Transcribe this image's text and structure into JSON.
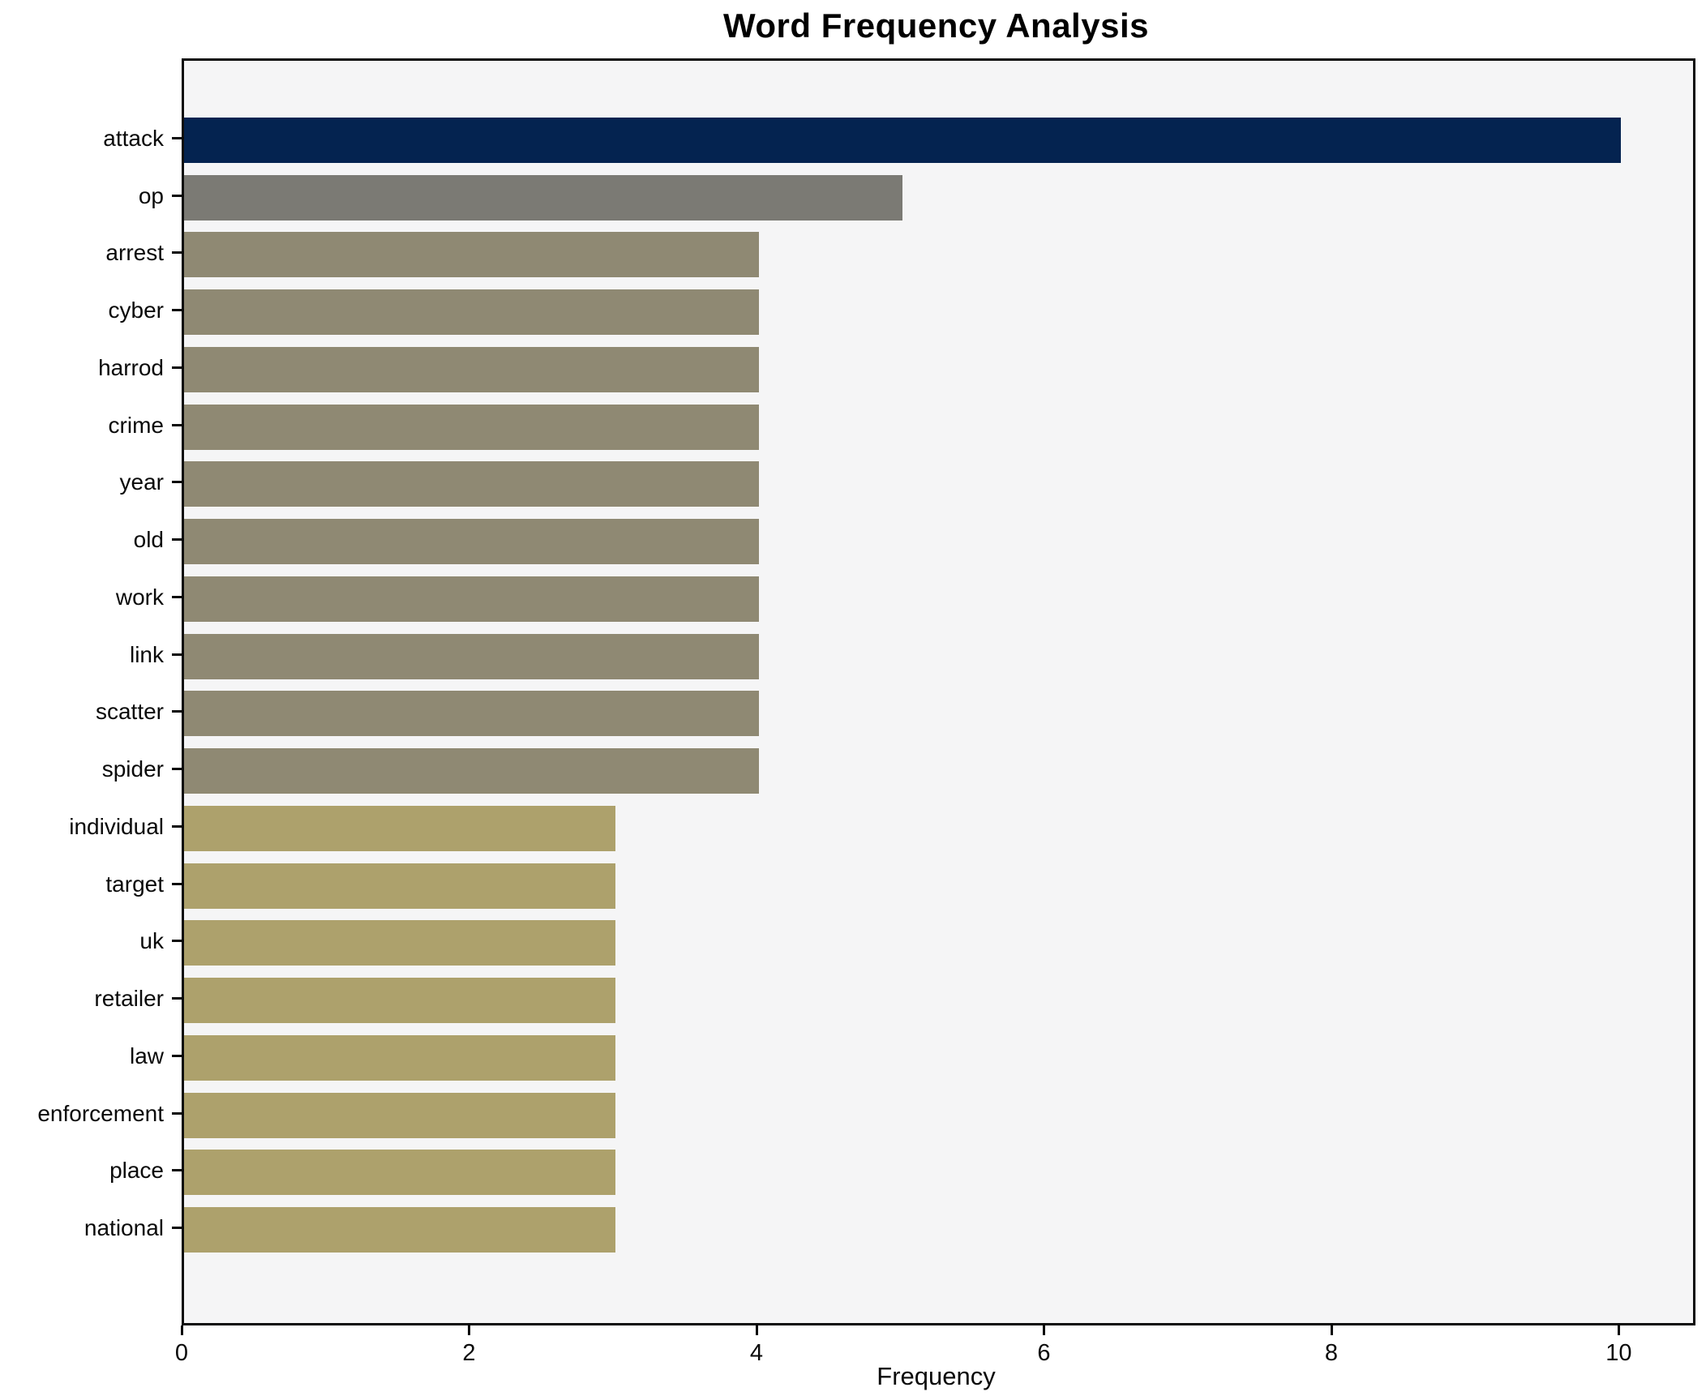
{
  "title": "Word Frequency Analysis",
  "xlabel": "Frequency",
  "chart_data": {
    "type": "bar",
    "orientation": "horizontal",
    "title": "Word Frequency Analysis",
    "xlabel": "Frequency",
    "ylabel": "",
    "categories": [
      "attack",
      "op",
      "arrest",
      "cyber",
      "harrod",
      "crime",
      "year",
      "old",
      "work",
      "link",
      "scatter",
      "spider",
      "individual",
      "target",
      "uk",
      "retailer",
      "law",
      "enforcement",
      "place",
      "national"
    ],
    "values": [
      10,
      5,
      4,
      4,
      4,
      4,
      4,
      4,
      4,
      4,
      4,
      4,
      3,
      3,
      3,
      3,
      3,
      3,
      3,
      3
    ],
    "bar_colors": [
      "#042350",
      "#7b7a74",
      "#8f8973",
      "#8f8973",
      "#8f8973",
      "#8f8973",
      "#8f8973",
      "#8f8973",
      "#8f8973",
      "#8f8973",
      "#8f8973",
      "#8f8973",
      "#ada16c",
      "#ada16c",
      "#ada16c",
      "#ada16c",
      "#ada16c",
      "#ada16c",
      "#ada16c",
      "#ada16c"
    ],
    "xlim": [
      0,
      10.5
    ],
    "xticks": [
      0,
      2,
      4,
      6,
      8,
      10
    ],
    "grid": false,
    "legend": null,
    "plot_background": "#f5f5f6",
    "page_background": "#ffffff",
    "spine_color": "#0a0a0a",
    "text_color": "#0a0a0a"
  }
}
